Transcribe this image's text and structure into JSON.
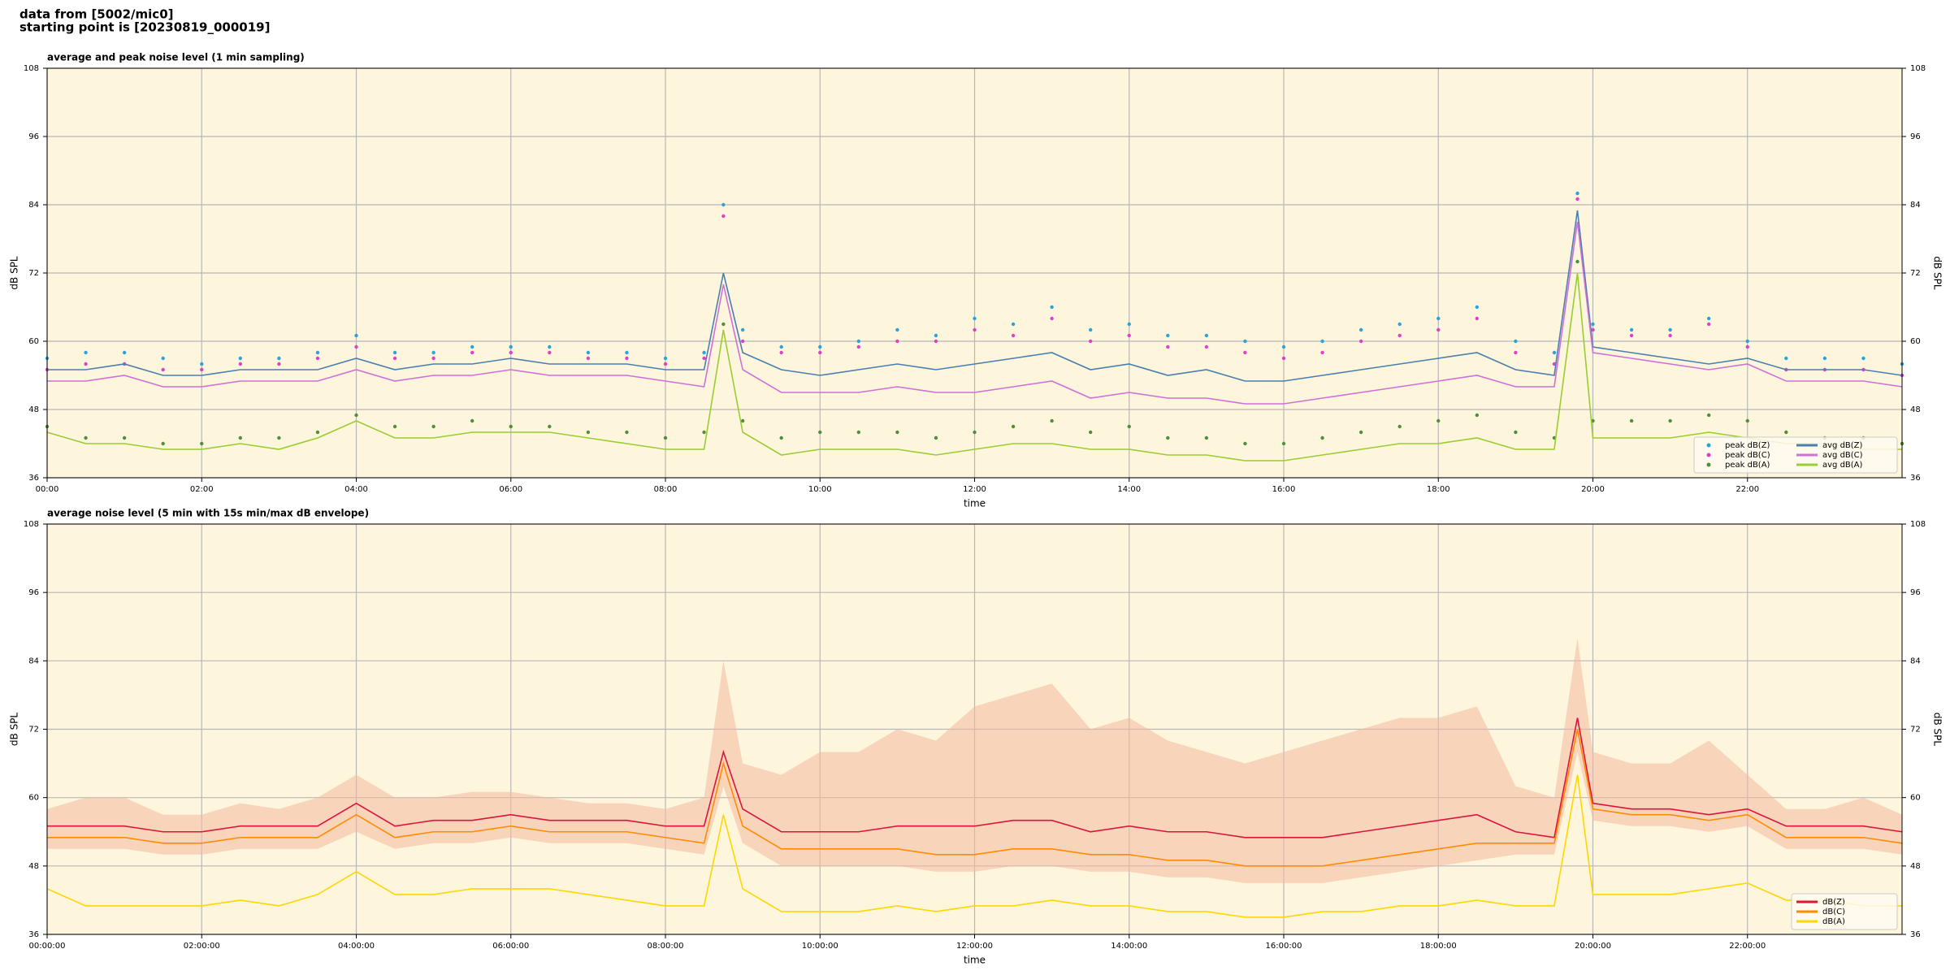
{
  "figure_title": [
    "data from [5002/mic0]",
    "starting point is [20230819_000019]"
  ],
  "chart_data": [
    {
      "type": "line",
      "title": "average and peak noise level (1 min sampling)",
      "x_label": "time",
      "y_label": "dB SPL",
      "xlim": [
        0,
        24
      ],
      "ylim": [
        36,
        108
      ],
      "yticks": [
        36,
        48,
        60,
        72,
        84,
        96,
        108
      ],
      "xticks": [
        {
          "value": 0,
          "label": "00:00"
        },
        {
          "value": 2,
          "label": "02:00"
        },
        {
          "value": 4,
          "label": "04:00"
        },
        {
          "value": 6,
          "label": "06:00"
        },
        {
          "value": 8,
          "label": "08:00"
        },
        {
          "value": 10,
          "label": "10:00"
        },
        {
          "value": 12,
          "label": "12:00"
        },
        {
          "value": 14,
          "label": "14:00"
        },
        {
          "value": 16,
          "label": "16:00"
        },
        {
          "value": 18,
          "label": "18:00"
        },
        {
          "value": 20,
          "label": "20:00"
        },
        {
          "value": 22,
          "label": "22:00"
        }
      ],
      "grid": true,
      "legend": "lower right",
      "legend_columns": 2,
      "x": [
        0,
        0.5,
        1,
        1.5,
        2,
        2.5,
        3,
        3.5,
        4,
        4.5,
        5,
        5.5,
        6,
        6.5,
        7,
        7.5,
        8,
        8.5,
        8.75,
        9,
        9.5,
        10,
        10.5,
        11,
        11.5,
        12,
        12.5,
        13,
        13.5,
        14,
        14.5,
        15,
        15.5,
        16,
        16.5,
        17,
        17.5,
        18,
        18.5,
        19,
        19.5,
        19.8,
        20,
        20.5,
        21,
        21.5,
        22,
        22.5,
        23,
        23.5,
        24
      ],
      "series": [
        {
          "name": "peak dB(Z)",
          "style": "dots",
          "color": "#2aa3dc",
          "values": [
            57,
            58,
            58,
            57,
            56,
            57,
            57,
            58,
            61,
            58,
            58,
            59,
            59,
            59,
            58,
            58,
            57,
            58,
            84,
            62,
            59,
            59,
            60,
            62,
            61,
            64,
            63,
            66,
            62,
            63,
            61,
            61,
            60,
            59,
            60,
            62,
            63,
            64,
            66,
            60,
            58,
            86,
            63,
            62,
            62,
            64,
            60,
            57,
            57,
            57,
            56
          ]
        },
        {
          "name": "peak dB(C)",
          "style": "dots",
          "color": "#e040c8",
          "values": [
            55,
            56,
            56,
            55,
            55,
            56,
            56,
            57,
            59,
            57,
            57,
            58,
            58,
            58,
            57,
            57,
            56,
            57,
            82,
            60,
            58,
            58,
            59,
            60,
            60,
            62,
            61,
            64,
            60,
            61,
            59,
            59,
            58,
            57,
            58,
            60,
            61,
            62,
            64,
            58,
            56,
            85,
            62,
            61,
            61,
            63,
            59,
            55,
            55,
            55,
            54
          ]
        },
        {
          "name": "peak dB(A)",
          "style": "dots",
          "color": "#4f8f3a",
          "values": [
            45,
            43,
            43,
            42,
            42,
            43,
            43,
            44,
            47,
            45,
            45,
            46,
            45,
            45,
            44,
            44,
            43,
            44,
            63,
            46,
            43,
            44,
            44,
            44,
            43,
            44,
            45,
            46,
            44,
            45,
            43,
            43,
            42,
            42,
            43,
            44,
            45,
            46,
            47,
            44,
            43,
            74,
            46,
            46,
            46,
            47,
            46,
            44,
            43,
            43,
            42
          ]
        },
        {
          "name": "avg dB(Z)",
          "style": "line",
          "color": "#4a7fb0",
          "values": [
            55,
            55,
            56,
            54,
            54,
            55,
            55,
            55,
            57,
            55,
            56,
            56,
            57,
            56,
            56,
            56,
            55,
            55,
            72,
            58,
            55,
            54,
            55,
            56,
            55,
            56,
            57,
            58,
            55,
            56,
            54,
            55,
            53,
            53,
            54,
            55,
            56,
            57,
            58,
            55,
            54,
            83,
            59,
            58,
            57,
            56,
            57,
            55,
            55,
            55,
            54
          ]
        },
        {
          "name": "avg dB(C)",
          "style": "line",
          "color": "#d070d8",
          "values": [
            53,
            53,
            54,
            52,
            52,
            53,
            53,
            53,
            55,
            53,
            54,
            54,
            55,
            54,
            54,
            54,
            53,
            52,
            70,
            55,
            51,
            51,
            51,
            52,
            51,
            51,
            52,
            53,
            50,
            51,
            50,
            50,
            49,
            49,
            50,
            51,
            52,
            53,
            54,
            52,
            52,
            81,
            58,
            57,
            56,
            55,
            56,
            53,
            53,
            53,
            52
          ]
        },
        {
          "name": "avg dB(A)",
          "style": "line",
          "color": "#9acd32",
          "values": [
            44,
            42,
            42,
            41,
            41,
            42,
            41,
            43,
            46,
            43,
            43,
            44,
            44,
            44,
            43,
            42,
            41,
            41,
            62,
            44,
            40,
            41,
            41,
            41,
            40,
            41,
            42,
            42,
            41,
            41,
            40,
            40,
            39,
            39,
            40,
            41,
            42,
            42,
            43,
            41,
            41,
            72,
            43,
            43,
            43,
            44,
            43,
            42,
            42,
            41,
            41
          ]
        }
      ]
    },
    {
      "type": "line",
      "title": "average noise level (5 min with 15s min/max dB envelope)",
      "x_label": "time",
      "y_label": "dB SPL",
      "xlim": [
        0,
        24
      ],
      "ylim": [
        36,
        108
      ],
      "yticks": [
        36,
        48,
        60,
        72,
        84,
        96,
        108
      ],
      "xticks": [
        {
          "value": 0,
          "label": "00:00:00"
        },
        {
          "value": 2,
          "label": "02:00:00"
        },
        {
          "value": 4,
          "label": "04:00:00"
        },
        {
          "value": 6,
          "label": "06:00:00"
        },
        {
          "value": 8,
          "label": "08:00:00"
        },
        {
          "value": 10,
          "label": "10:00:00"
        },
        {
          "value": 12,
          "label": "12:00:00"
        },
        {
          "value": 14,
          "label": "14:00:00"
        },
        {
          "value": 16,
          "label": "16:00:00"
        },
        {
          "value": 18,
          "label": "18:00:00"
        },
        {
          "value": 20,
          "label": "20:00:00"
        },
        {
          "value": 22,
          "label": "22:00:00"
        }
      ],
      "grid": true,
      "legend": "lower right",
      "legend_columns": 1,
      "x": [
        0,
        0.5,
        1,
        1.5,
        2,
        2.5,
        3,
        3.5,
        4,
        4.5,
        5,
        5.5,
        6,
        6.5,
        7,
        7.5,
        8,
        8.5,
        8.75,
        9,
        9.5,
        10,
        10.5,
        11,
        11.5,
        12,
        12.5,
        13,
        13.5,
        14,
        14.5,
        15,
        15.5,
        16,
        16.5,
        17,
        17.5,
        18,
        18.5,
        19,
        19.5,
        19.8,
        20,
        20.5,
        21,
        21.5,
        22,
        22.5,
        23,
        23.5,
        24
      ],
      "band": {
        "color": "#f4b8a0",
        "low": [
          51,
          51,
          51,
          50,
          50,
          51,
          51,
          51,
          54,
          51,
          52,
          52,
          53,
          52,
          52,
          52,
          51,
          50,
          62,
          52,
          48,
          48,
          48,
          48,
          47,
          47,
          48,
          48,
          47,
          47,
          46,
          46,
          45,
          45,
          45,
          46,
          47,
          48,
          49,
          50,
          50,
          68,
          56,
          55,
          55,
          54,
          55,
          51,
          51,
          51,
          50
        ],
        "high": [
          58,
          60,
          60,
          57,
          57,
          59,
          58,
          60,
          64,
          60,
          60,
          61,
          61,
          60,
          59,
          59,
          58,
          60,
          84,
          66,
          64,
          68,
          68,
          72,
          70,
          76,
          78,
          80,
          72,
          74,
          70,
          68,
          66,
          68,
          70,
          72,
          74,
          74,
          76,
          62,
          60,
          88,
          68,
          66,
          66,
          70,
          64,
          58,
          58,
          60,
          57
        ]
      },
      "series": [
        {
          "name": "dB(Z)",
          "style": "line",
          "color": "#dc143c",
          "values": [
            55,
            55,
            55,
            54,
            54,
            55,
            55,
            55,
            59,
            55,
            56,
            56,
            57,
            56,
            56,
            56,
            55,
            55,
            68,
            58,
            54,
            54,
            54,
            55,
            55,
            55,
            56,
            56,
            54,
            55,
            54,
            54,
            53,
            53,
            53,
            54,
            55,
            56,
            57,
            54,
            53,
            74,
            59,
            58,
            58,
            57,
            58,
            55,
            55,
            55,
            54
          ]
        },
        {
          "name": "dB(C)",
          "style": "line",
          "color": "#ff8c00",
          "values": [
            53,
            53,
            53,
            52,
            52,
            53,
            53,
            53,
            57,
            53,
            54,
            54,
            55,
            54,
            54,
            54,
            53,
            52,
            66,
            55,
            51,
            51,
            51,
            51,
            50,
            50,
            51,
            51,
            50,
            50,
            49,
            49,
            48,
            48,
            48,
            49,
            50,
            51,
            52,
            52,
            52,
            72,
            58,
            57,
            57,
            56,
            57,
            53,
            53,
            53,
            52
          ]
        },
        {
          "name": "dB(A)",
          "style": "line",
          "color": "#ffd700",
          "values": [
            44,
            41,
            41,
            41,
            41,
            42,
            41,
            43,
            47,
            43,
            43,
            44,
            44,
            44,
            43,
            42,
            41,
            41,
            57,
            44,
            40,
            40,
            40,
            41,
            40,
            41,
            41,
            42,
            41,
            41,
            40,
            40,
            39,
            39,
            40,
            40,
            41,
            41,
            42,
            41,
            41,
            64,
            43,
            43,
            43,
            44,
            45,
            42,
            42,
            41,
            41
          ]
        }
      ]
    }
  ]
}
